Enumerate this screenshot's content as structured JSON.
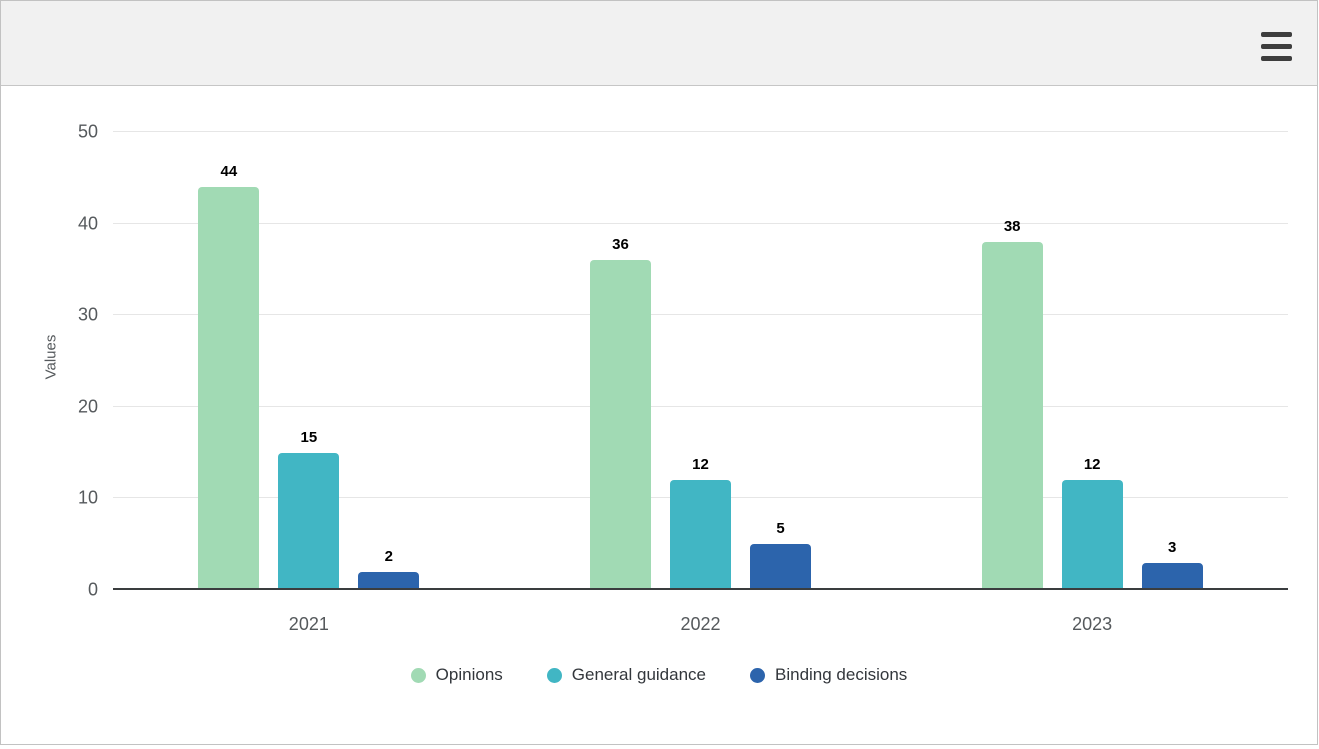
{
  "topbar": {
    "menu_icon": "hamburger-menu-icon"
  },
  "chart_data": {
    "type": "bar",
    "categories": [
      "2021",
      "2022",
      "2023"
    ],
    "series": [
      {
        "name": "Opinions",
        "color": "#a1dab4",
        "values": [
          44,
          36,
          38
        ]
      },
      {
        "name": "General guidance",
        "color": "#41b6c4",
        "values": [
          15,
          12,
          12
        ]
      },
      {
        "name": "Binding decisions",
        "color": "#2c64ac",
        "values": [
          2,
          5,
          3
        ]
      }
    ],
    "title": "",
    "xlabel": "",
    "ylabel": "Values",
    "ylim": [
      0,
      50
    ],
    "yticks": [
      0,
      10,
      20,
      30,
      40,
      50
    ],
    "grid": true,
    "legend_position": "bottom",
    "data_labels": true
  },
  "colors": {
    "topbar_bg": "#f1f1f1",
    "page_border": "#c2c2c2",
    "gridline": "#e6e6e6",
    "axis_line": "#3a3d3f",
    "tick_label": "#55595c",
    "data_label": "#000000",
    "legend_text": "#33373c",
    "hamburger": "#3d3d3d"
  }
}
